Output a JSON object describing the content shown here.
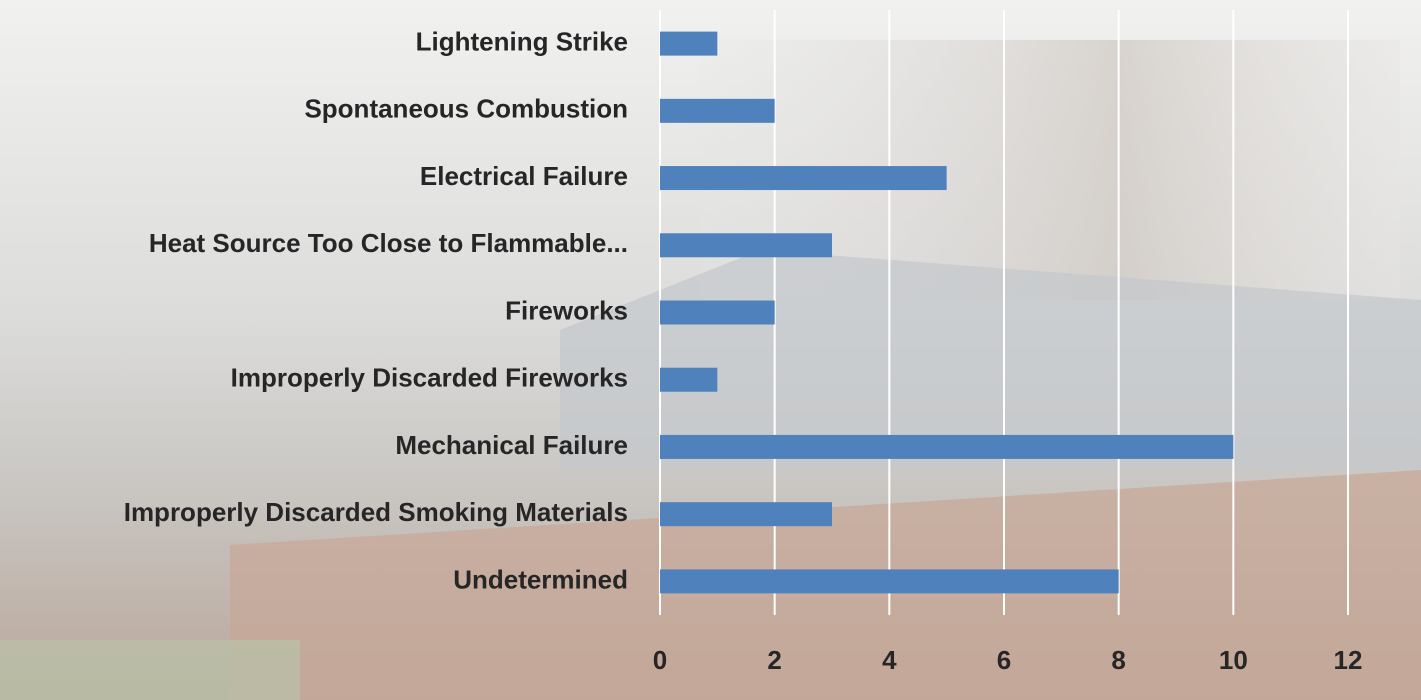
{
  "chart_data": {
    "type": "bar",
    "orientation": "horizontal",
    "categories": [
      "Lightening Strike",
      "Spontaneous Combustion",
      "Electrical Failure",
      "Heat Source Too Close to Flammable...",
      "Fireworks",
      "Improperly Discarded Fireworks",
      "Mechanical Failure",
      "Improperly Discarded Smoking Materials",
      "Undetermined"
    ],
    "values": [
      1,
      2,
      5,
      3,
      2,
      1,
      10,
      3,
      8
    ],
    "color": "#4f81bd",
    "xlim": [
      0,
      12
    ],
    "xticks": [
      0,
      2,
      4,
      6,
      8,
      10,
      12
    ],
    "grid": true
  }
}
